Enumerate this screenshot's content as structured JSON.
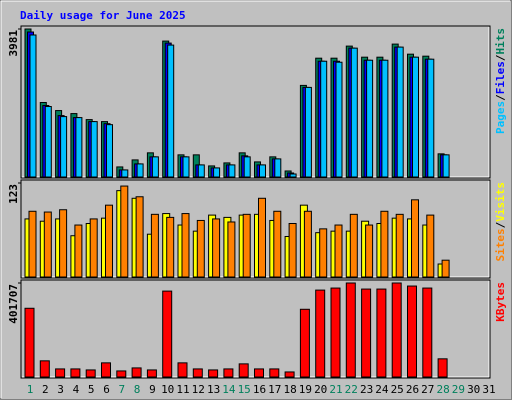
{
  "chart_data": {
    "type": "bar",
    "title": "Daily usage for June 2025",
    "title_color": "#0000ff",
    "separator": "/",
    "categories": [
      "1",
      "2",
      "3",
      "4",
      "5",
      "6",
      "7",
      "8",
      "9",
      "10",
      "11",
      "12",
      "13",
      "14",
      "15",
      "16",
      "17",
      "18",
      "19",
      "20",
      "21",
      "22",
      "23",
      "24",
      "25",
      "26",
      "27",
      "28",
      "29",
      "30",
      "31"
    ],
    "category_colors": [
      "#00805c",
      "#000000",
      "#000000",
      "#000000",
      "#000000",
      "#000000",
      "#00805c",
      "#00805c",
      "#000000",
      "#000000",
      "#000000",
      "#000000",
      "#000000",
      "#00805c",
      "#00805c",
      "#000000",
      "#000000",
      "#000000",
      "#000000",
      "#000000",
      "#00805c",
      "#00805c",
      "#000000",
      "#000000",
      "#000000",
      "#000000",
      "#000000",
      "#00805c",
      "#00805c",
      "#000000",
      "#000000"
    ],
    "panels": [
      {
        "ylim": [
          0,
          3981
        ],
        "yticks": [
          3981
        ],
        "series": [
          {
            "name": "Hits",
            "color": "#00805c",
            "values": [
              3981,
              2004,
              1787,
              1706,
              1544,
              1490,
              271,
              460,
              650,
              3656,
              596,
              596,
              298,
              379,
              650,
              406,
              542,
              162,
              2464,
              3196,
              3196,
              3521,
              3223,
              3223,
              3575,
              3304,
              3250,
              623,
              null,
              null,
              null
            ]
          },
          {
            "name": "Files",
            "color": "#0000ff",
            "values": [
              3900,
              1923,
              1652,
              1598,
              1490,
              1435,
              190,
              352,
              542,
              3602,
              542,
              325,
              244,
              325,
              569,
              325,
              487,
              108,
              2410,
              3114,
              3114,
              3466,
              3141,
              3141,
              3494,
              3223,
              3169,
              596,
              null,
              null,
              null
            ]
          },
          {
            "name": "Pages",
            "color": "#00c0ff",
            "values": [
              3820,
              1896,
              1625,
              1598,
              1490,
              1408,
              190,
              352,
              542,
              3548,
              542,
              325,
              244,
              325,
              542,
              325,
              487,
              81,
              2410,
              3114,
              3087,
              3466,
              3141,
              3141,
              3494,
              3223,
              3169,
              596,
              null,
              null,
              null
            ]
          }
        ]
      },
      {
        "ylim": [
          0,
          123
        ],
        "yticks": [
          123
        ],
        "series": [
          {
            "name": "Visits",
            "color": "#ffff00",
            "values": [
              76,
              73,
              76,
              54,
              70,
              77,
              113,
              103,
              56,
              83,
              68,
              60,
              81,
              78,
              81,
              82,
              74,
              53,
              94,
              58,
              60,
              60,
              73,
              70,
              77,
              76,
              68,
              17,
              null,
              null,
              null
            ]
          },
          {
            "name": "Sites",
            "color": "#ff8000",
            "values": [
              86,
              85,
              88,
              68,
              76,
              94,
              119,
              105,
              82,
              78,
              83,
              74,
              76,
              72,
              82,
              103,
              86,
              70,
              86,
              63,
              68,
              82,
              68,
              86,
              82,
              101,
              81,
              22,
              null,
              null,
              null
            ]
          }
        ]
      },
      {
        "ylim": [
          0,
          401707
        ],
        "yticks": [
          401707
        ],
        "series": [
          {
            "name": "KBytes",
            "color": "#ff0000",
            "values": [
              293700,
              69100,
              34550,
              34550,
              30230,
              60470,
              25900,
              38870,
              30230,
              367100,
              60470,
              34550,
              30230,
              34550,
              56150,
              34550,
              34550,
              21600,
              289400,
              371400,
              380100,
              401707,
              375800,
              375800,
              401707,
              388700,
              380100,
              77700,
              null,
              null,
              null
            ]
          }
        ]
      }
    ]
  }
}
